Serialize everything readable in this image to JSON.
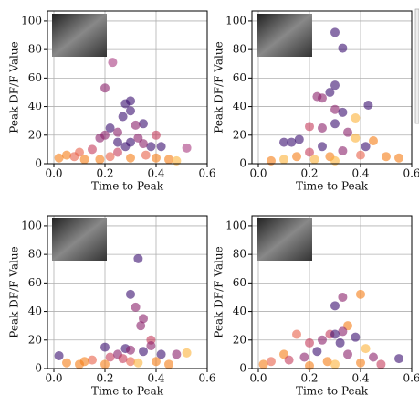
{
  "chart_data": [
    {
      "type": "scatter",
      "xlabel": "Time to Peak",
      "ylabel": "Peak DF/F Value",
      "x": [
        0.2,
        0.23,
        0.3,
        0.28,
        0.3,
        0.27,
        0.35,
        0.32,
        0.22,
        0.25,
        0.2,
        0.18,
        0.42,
        0.52,
        0.38,
        0.15,
        0.1,
        0.05,
        0.02,
        0.08,
        0.12,
        0.25,
        0.3,
        0.33,
        0.36,
        0.4,
        0.45,
        0.48,
        0.28,
        0.22,
        0.18,
        0.3,
        0.35,
        0.4,
        0.25
      ],
      "y": [
        53,
        71,
        44,
        42,
        37,
        33,
        28,
        27,
        25,
        22,
        20,
        18,
        12,
        11,
        12,
        10,
        8,
        6,
        4,
        5,
        3,
        8,
        15,
        18,
        6,
        4,
        3,
        2,
        12,
        5,
        3,
        4,
        14,
        20,
        15
      ],
      "colors": [
        "#8a226a",
        "#a83a80",
        "#3b0f70",
        "#3b0f70",
        "#3b0f70",
        "#3b0f70",
        "#3b0f70",
        "#8a226a",
        "#3b0f70",
        "#8a226a",
        "#8a226a",
        "#8a226a",
        "#3b0f70",
        "#a83a80",
        "#3b0f70",
        "#c53c5b",
        "#e8604a",
        "#f57d15",
        "#f57d15",
        "#e8604a",
        "#f57d15",
        "#c53c5b",
        "#3b0f70",
        "#8a226a",
        "#e8604a",
        "#f57d15",
        "#f57d15",
        "#fbb33a",
        "#3b0f70",
        "#e8604a",
        "#f57d15",
        "#f57d15",
        "#8a226a",
        "#c53c5b",
        "#3b0f70"
      ],
      "xlim": [
        -0.025,
        0.6
      ],
      "ylim": [
        0,
        107
      ],
      "xticks": [
        {
          "value": 0,
          "label": "0.0"
        },
        0.2,
        0.4,
        0.6
      ],
      "yticks": [
        0,
        20,
        40,
        60,
        80,
        100
      ],
      "grid": true
    },
    {
      "type": "scatter",
      "xlabel": "Time to Peak",
      "ylabel": "Peak DF/F Value",
      "x": [
        0.3,
        0.33,
        0.23,
        0.25,
        0.3,
        0.28,
        0.43,
        0.3,
        0.33,
        0.38,
        0.2,
        0.25,
        0.1,
        0.13,
        0.16,
        0.3,
        0.35,
        0.45,
        0.42,
        0.5,
        0.55,
        0.05,
        0.1,
        0.2,
        0.25,
        0.28,
        0.33,
        0.38,
        0.4,
        0.15,
        0.22,
        0.3
      ],
      "y": [
        92,
        81,
        47,
        46,
        55,
        50,
        41,
        38,
        36,
        32,
        26,
        25,
        15,
        15,
        17,
        28,
        22,
        16,
        12,
        5,
        4,
        2,
        3,
        8,
        12,
        5,
        9,
        18,
        6,
        5,
        3,
        2
      ],
      "colors": [
        "#3b0f70",
        "#3b0f70",
        "#8a226a",
        "#8a226a",
        "#3b0f70",
        "#3b0f70",
        "#3b0f70",
        "#8a226a",
        "#3b0f70",
        "#fbb33a",
        "#c53c5b",
        "#8a226a",
        "#3b0f70",
        "#3b0f70",
        "#3b0f70",
        "#3b0f70",
        "#8a226a",
        "#f57d15",
        "#3b0f70",
        "#f57d15",
        "#f57d15",
        "#f57d15",
        "#fbb33a",
        "#c53c5b",
        "#3b0f70",
        "#f57d15",
        "#8a226a",
        "#fbb33a",
        "#e8604a",
        "#f57d15",
        "#fbb33a",
        "#fbb33a"
      ],
      "xlim": [
        -0.025,
        0.6
      ],
      "ylim": [
        0,
        107
      ],
      "xticks": [
        {
          "value": 0,
          "label": "0.0"
        },
        0.2,
        0.4,
        0.6
      ],
      "yticks": [
        0,
        20,
        40,
        60,
        80,
        100
      ],
      "grid": true
    },
    {
      "type": "scatter",
      "xlabel": "Time to Peak",
      "ylabel": "Peak DF/F Value",
      "x": [
        0.33,
        0.3,
        0.32,
        0.35,
        0.34,
        0.38,
        0.2,
        0.28,
        0.3,
        0.42,
        0.48,
        0.52,
        0.02,
        0.05,
        0.1,
        0.15,
        0.22,
        0.25,
        0.35,
        0.4,
        0.45,
        0.3,
        0.2,
        0.12,
        0.38,
        0.27,
        0.33
      ],
      "y": [
        77,
        52,
        43,
        35,
        30,
        20,
        15,
        14,
        13,
        10,
        10,
        11,
        9,
        4,
        3,
        6,
        8,
        10,
        12,
        5,
        3,
        5,
        3,
        5,
        16,
        7,
        4
      ],
      "colors": [
        "#3b0f70",
        "#3b0f70",
        "#8a226a",
        "#8a226a",
        "#8a226a",
        "#c53c5b",
        "#3b0f70",
        "#3b0f70",
        "#8a226a",
        "#3b0f70",
        "#8a226a",
        "#fbb33a",
        "#3b0f70",
        "#f57d15",
        "#f57d15",
        "#e8604a",
        "#c53c5b",
        "#8a226a",
        "#3b0f70",
        "#f57d15",
        "#f57d15",
        "#e8604a",
        "#f57d15",
        "#f57d15",
        "#8a226a",
        "#c53c5b",
        "#fbb33a"
      ],
      "xlim": [
        -0.025,
        0.6
      ],
      "ylim": [
        0,
        107
      ],
      "xticks": [
        {
          "value": 0,
          "label": "0.0"
        },
        0.2,
        0.4,
        0.6
      ],
      "yticks": [
        0,
        20,
        40,
        60,
        80,
        100
      ],
      "grid": true
    },
    {
      "type": "scatter",
      "xlabel": "Time to Peak",
      "ylabel": "Peak DF/F Value",
      "x": [
        0.33,
        0.4,
        0.3,
        0.35,
        0.33,
        0.28,
        0.3,
        0.15,
        0.38,
        0.25,
        0.2,
        0.32,
        0.42,
        0.45,
        0.55,
        0.1,
        0.05,
        0.02,
        0.12,
        0.18,
        0.23,
        0.27,
        0.35,
        0.4,
        0.48,
        0.3,
        0.2
      ],
      "y": [
        50,
        52,
        44,
        30,
        26,
        24,
        24,
        24,
        22,
        20,
        18,
        18,
        14,
        8,
        7,
        10,
        5,
        3,
        6,
        8,
        12,
        5,
        10,
        4,
        3,
        3,
        2
      ],
      "colors": [
        "#8a226a",
        "#f57d15",
        "#3b0f70",
        "#f57d15",
        "#8a226a",
        "#c53c5b",
        "#3b0f70",
        "#e8604a",
        "#3b0f70",
        "#8a226a",
        "#c53c5b",
        "#3b0f70",
        "#fbb33a",
        "#8a226a",
        "#3b0f70",
        "#f57d15",
        "#e8604a",
        "#f57d15",
        "#c53c5b",
        "#8a226a",
        "#3b0f70",
        "#f57d15",
        "#8a226a",
        "#f57d15",
        "#c53c5b",
        "#fbb33a",
        "#f57d15"
      ],
      "xlim": [
        -0.025,
        0.6
      ],
      "ylim": [
        0,
        107
      ],
      "xticks": [
        {
          "value": 0,
          "label": "0.0"
        },
        0.2,
        0.4,
        0.6
      ],
      "yticks": [
        0,
        20,
        40,
        60,
        80,
        100
      ],
      "grid": true
    }
  ]
}
